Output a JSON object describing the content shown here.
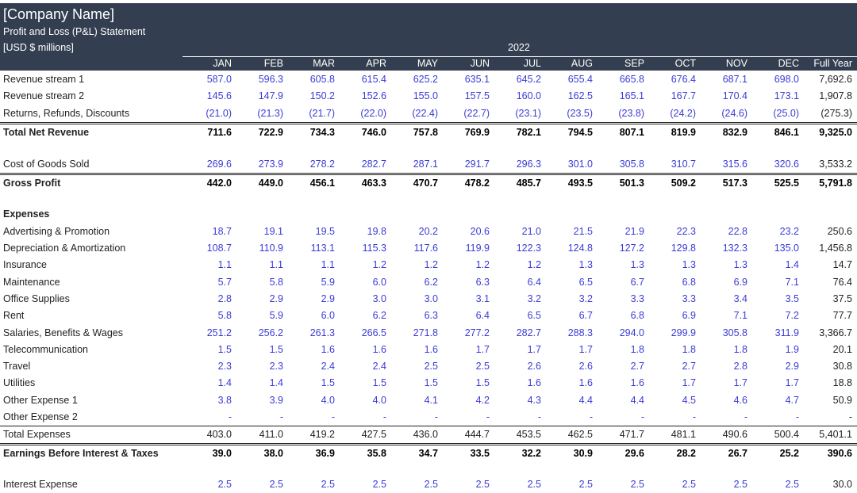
{
  "header": {
    "company": "[Company Name]",
    "subtitle": "Profit and Loss (P&L) Statement",
    "units": "[USD $ millions]",
    "year": "2022"
  },
  "columns": [
    "JAN",
    "FEB",
    "MAR",
    "APR",
    "MAY",
    "JUN",
    "JUL",
    "AUG",
    "SEP",
    "OCT",
    "NOV",
    "DEC",
    "Full Year"
  ],
  "rows": [
    {
      "label": "Revenue stream 1",
      "style": "blue",
      "values": [
        "587.0",
        "596.3",
        "605.8",
        "615.4",
        "625.2",
        "635.1",
        "645.2",
        "655.4",
        "665.8",
        "676.4",
        "687.1",
        "698.0",
        "7,692.6"
      ]
    },
    {
      "label": "Revenue stream 2",
      "style": "blue",
      "values": [
        "145.6",
        "147.9",
        "150.2",
        "152.6",
        "155.0",
        "157.5",
        "160.0",
        "162.5",
        "165.1",
        "167.7",
        "170.4",
        "173.1",
        "1,907.8"
      ]
    },
    {
      "label": "Returns, Refunds, Discounts",
      "style": "blue",
      "values": [
        "(21.0)",
        "(21.3)",
        "(21.7)",
        "(22.0)",
        "(22.4)",
        "(22.7)",
        "(23.1)",
        "(23.5)",
        "(23.8)",
        "(24.2)",
        "(24.6)",
        "(25.0)",
        "(275.3)"
      ]
    },
    {
      "label": "Total Net Revenue",
      "style": "bold dbl",
      "values": [
        "711.6",
        "722.9",
        "734.3",
        "746.0",
        "757.8",
        "769.9",
        "782.1",
        "794.5",
        "807.1",
        "819.9",
        "832.9",
        "846.1",
        "9,325.0"
      ]
    },
    {
      "label": "",
      "style": "",
      "values": [
        "",
        "",
        "",
        "",
        "",
        "",
        "",
        "",
        "",
        "",
        "",
        "",
        ""
      ]
    },
    {
      "label": "Cost of Goods Sold",
      "style": "blue",
      "values": [
        "269.6",
        "273.9",
        "278.2",
        "282.7",
        "287.1",
        "291.7",
        "296.3",
        "301.0",
        "305.8",
        "310.7",
        "315.6",
        "320.6",
        "3,533.2"
      ]
    },
    {
      "label": "Gross Profit",
      "style": "bold dbl",
      "values": [
        "442.0",
        "449.0",
        "456.1",
        "463.3",
        "470.7",
        "478.2",
        "485.7",
        "493.5",
        "501.3",
        "509.2",
        "517.3",
        "525.5",
        "5,791.8"
      ]
    },
    {
      "label": "",
      "style": "",
      "values": [
        "",
        "",
        "",
        "",
        "",
        "",
        "",
        "",
        "",
        "",
        "",
        "",
        ""
      ]
    },
    {
      "label": "Expenses",
      "style": "bold",
      "values": [
        "",
        "",
        "",
        "",
        "",
        "",
        "",
        "",
        "",
        "",
        "",
        "",
        ""
      ]
    },
    {
      "label": "Advertising & Promotion",
      "style": "blue",
      "values": [
        "18.7",
        "19.1",
        "19.5",
        "19.8",
        "20.2",
        "20.6",
        "21.0",
        "21.5",
        "21.9",
        "22.3",
        "22.8",
        "23.2",
        "250.6"
      ]
    },
    {
      "label": "Depreciation & Amortization",
      "style": "blue",
      "values": [
        "108.7",
        "110.9",
        "113.1",
        "115.3",
        "117.6",
        "119.9",
        "122.3",
        "124.8",
        "127.2",
        "129.8",
        "132.3",
        "135.0",
        "1,456.8"
      ]
    },
    {
      "label": "Insurance",
      "style": "blue",
      "values": [
        "1.1",
        "1.1",
        "1.1",
        "1.2",
        "1.2",
        "1.2",
        "1.2",
        "1.3",
        "1.3",
        "1.3",
        "1.3",
        "1.4",
        "14.7"
      ]
    },
    {
      "label": "Maintenance",
      "style": "blue",
      "values": [
        "5.7",
        "5.8",
        "5.9",
        "6.0",
        "6.2",
        "6.3",
        "6.4",
        "6.5",
        "6.7",
        "6.8",
        "6.9",
        "7.1",
        "76.4"
      ]
    },
    {
      "label": "Office Supplies",
      "style": "blue",
      "values": [
        "2.8",
        "2.9",
        "2.9",
        "3.0",
        "3.0",
        "3.1",
        "3.2",
        "3.2",
        "3.3",
        "3.3",
        "3.4",
        "3.5",
        "37.5"
      ]
    },
    {
      "label": "Rent",
      "style": "blue",
      "values": [
        "5.8",
        "5.9",
        "6.0",
        "6.2",
        "6.3",
        "6.4",
        "6.5",
        "6.7",
        "6.8",
        "6.9",
        "7.1",
        "7.2",
        "77.7"
      ]
    },
    {
      "label": "Salaries, Benefits & Wages",
      "style": "blue",
      "values": [
        "251.2",
        "256.2",
        "261.3",
        "266.5",
        "271.8",
        "277.2",
        "282.7",
        "288.3",
        "294.0",
        "299.9",
        "305.8",
        "311.9",
        "3,366.7"
      ]
    },
    {
      "label": "Telecommunication",
      "style": "blue",
      "values": [
        "1.5",
        "1.5",
        "1.6",
        "1.6",
        "1.6",
        "1.7",
        "1.7",
        "1.7",
        "1.8",
        "1.8",
        "1.8",
        "1.9",
        "20.1"
      ]
    },
    {
      "label": "Travel",
      "style": "blue",
      "values": [
        "2.3",
        "2.3",
        "2.4",
        "2.4",
        "2.5",
        "2.5",
        "2.6",
        "2.6",
        "2.7",
        "2.7",
        "2.8",
        "2.9",
        "30.8"
      ]
    },
    {
      "label": "Utilities",
      "style": "blue",
      "values": [
        "1.4",
        "1.4",
        "1.5",
        "1.5",
        "1.5",
        "1.5",
        "1.6",
        "1.6",
        "1.6",
        "1.7",
        "1.7",
        "1.7",
        "18.8"
      ]
    },
    {
      "label": "Other Expense 1",
      "style": "blue",
      "values": [
        "3.8",
        "3.9",
        "4.0",
        "4.0",
        "4.1",
        "4.2",
        "4.3",
        "4.4",
        "4.4",
        "4.5",
        "4.6",
        "4.7",
        "50.9"
      ]
    },
    {
      "label": "Other Expense 2",
      "style": "blue",
      "values": [
        "-",
        "-",
        "-",
        "-",
        "-",
        "-",
        "-",
        "-",
        "-",
        "-",
        "-",
        "-",
        "-"
      ]
    },
    {
      "label": "Total Expenses",
      "style": "topline",
      "values": [
        "403.0",
        "411.0",
        "419.2",
        "427.5",
        "436.0",
        "444.7",
        "453.5",
        "462.5",
        "471.7",
        "481.1",
        "490.6",
        "500.4",
        "5,401.1"
      ]
    },
    {
      "label": "Earnings Before Interest & Taxes",
      "style": "bold dbl",
      "values": [
        "39.0",
        "38.0",
        "36.9",
        "35.8",
        "34.7",
        "33.5",
        "32.2",
        "30.9",
        "29.6",
        "28.2",
        "26.7",
        "25.2",
        "390.6"
      ]
    },
    {
      "label": "",
      "style": "",
      "values": [
        "",
        "",
        "",
        "",
        "",
        "",
        "",
        "",
        "",
        "",
        "",
        "",
        ""
      ]
    },
    {
      "label": "Interest Expense",
      "style": "blue",
      "values": [
        "2.5",
        "2.5",
        "2.5",
        "2.5",
        "2.5",
        "2.5",
        "2.5",
        "2.5",
        "2.5",
        "2.5",
        "2.5",
        "2.5",
        "30.0"
      ]
    }
  ]
}
